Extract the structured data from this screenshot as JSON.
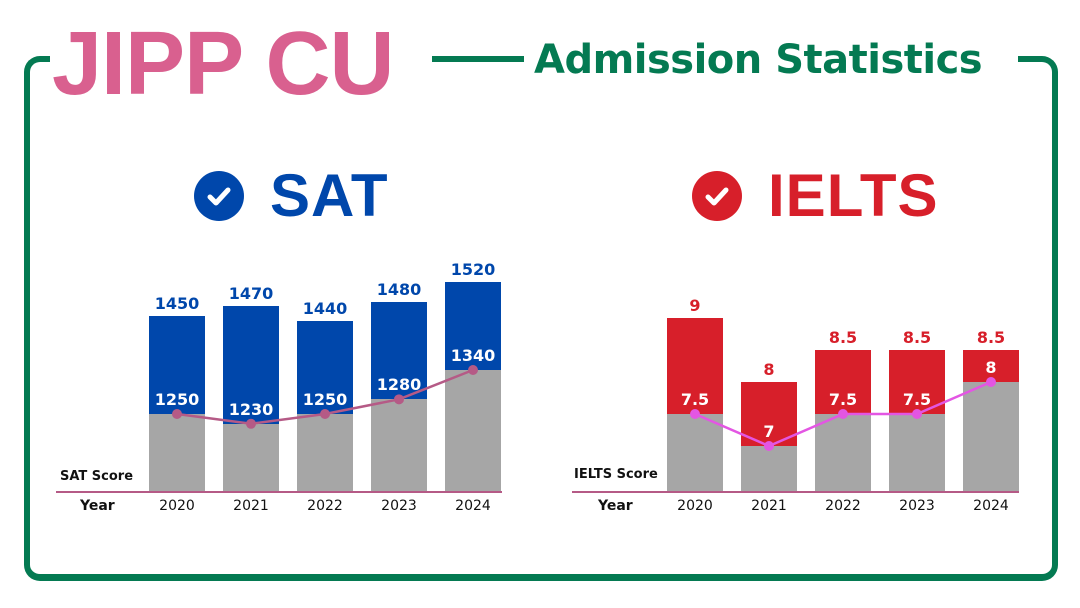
{
  "header": {
    "title": "JIPP CU",
    "subtitle": "Admission Statistics"
  },
  "colors": {
    "frame_green": "#047a52",
    "title_pink": "#d9608f",
    "sat_blue": "#0047ab",
    "ielts_red": "#d71f2a",
    "bar_grey": "#a6a6a6",
    "sat_line": "#b55a86",
    "ielts_line": "#e356e3",
    "axis_line": "#b55a86"
  },
  "sat": {
    "heading": "SAT",
    "icon": "check-circle-icon",
    "score_label": "SAT Score",
    "year_label": "Year"
  },
  "ielts": {
    "heading": "IELTS",
    "icon": "check-circle-icon",
    "score_label": "IELTS Score",
    "year_label": "Year"
  },
  "chart_data": [
    {
      "type": "bar",
      "title": "SAT",
      "xlabel": "Year",
      "ylabel": "SAT Score",
      "categories": [
        "2020",
        "2021",
        "2022",
        "2023",
        "2024"
      ],
      "series": [
        {
          "name": "Upper score (top of bar)",
          "values": [
            1450,
            1470,
            1440,
            1480,
            1520
          ],
          "labels": [
            "1450",
            "1470",
            "1440",
            "1480",
            "1520"
          ]
        },
        {
          "name": "Lower score (grey segment / line)",
          "values": [
            1250,
            1230,
            1250,
            1280,
            1340
          ],
          "labels": [
            "1250",
            "1230",
            "1250",
            "1280",
            "1340"
          ]
        }
      ],
      "grid": false,
      "legend": "none"
    },
    {
      "type": "bar",
      "title": "IELTS",
      "xlabel": "Year",
      "ylabel": "IELTS Score",
      "categories": [
        "2020",
        "2021",
        "2022",
        "2023",
        "2024"
      ],
      "series": [
        {
          "name": "Upper score (top of bar)",
          "values": [
            9,
            8,
            8.5,
            8.5,
            8.5
          ],
          "labels": [
            "9",
            "8",
            "8.5",
            "8.5",
            "8.5"
          ]
        },
        {
          "name": "Lower score (grey segment / line)",
          "values": [
            7.5,
            7,
            7.5,
            7.5,
            8
          ],
          "labels": [
            "7.5",
            "7",
            "7.5",
            "7.5",
            "8"
          ]
        }
      ],
      "grid": false,
      "legend": "none"
    }
  ]
}
